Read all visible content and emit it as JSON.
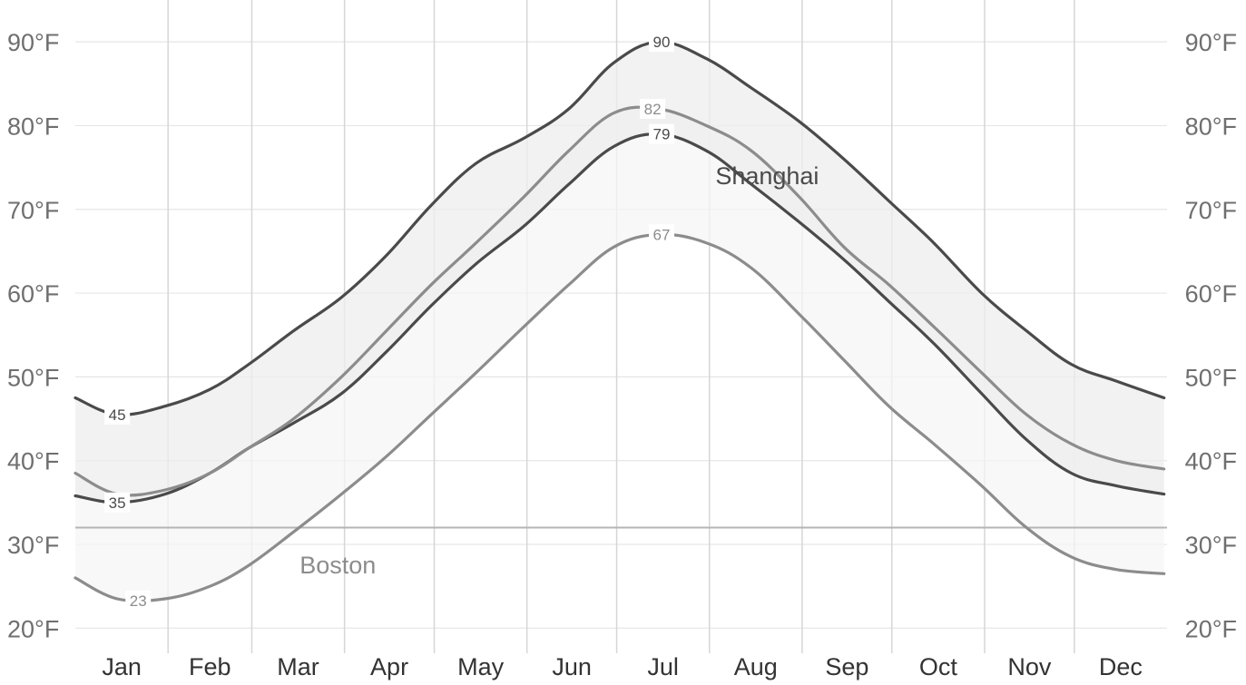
{
  "chart_data": {
    "type": "line",
    "title": "",
    "xlabel": "",
    "ylabel": "",
    "y_unit_suffix": "°F",
    "ylim": [
      17,
      95
    ],
    "y_ticks": [
      20,
      30,
      40,
      50,
      60,
      70,
      80,
      90
    ],
    "freezing_line": 32,
    "months": [
      "Jan",
      "Feb",
      "Mar",
      "Apr",
      "May",
      "Jun",
      "Jul",
      "Aug",
      "Sep",
      "Oct",
      "Nov",
      "Dec"
    ],
    "x": [
      1,
      15,
      31,
      46,
      59,
      74,
      90,
      105,
      120,
      135,
      151,
      166,
      181,
      196,
      212,
      227,
      243,
      258,
      273,
      288,
      304,
      319,
      334,
      349,
      365
    ],
    "grid": true,
    "bands": [
      {
        "name": "Shanghai",
        "upper_series": "shanghai_high",
        "lower_series": "shanghai_low",
        "fill": "#eeeeee",
        "label_x": 215,
        "label_y": 74
      },
      {
        "name": "Boston",
        "upper_series": "boston_high",
        "lower_series": "boston_low",
        "fill": "#f6f6f6",
        "label_x": 76,
        "label_y": 27.5
      }
    ],
    "series": [
      {
        "id": "shanghai_high",
        "color": "#4a4a4a",
        "values": [
          47.5,
          45.5,
          46.5,
          48.5,
          51.5,
          55.5,
          59.5,
          64.5,
          70.5,
          75.5,
          78.5,
          82.0,
          87.5,
          90.0,
          88.0,
          84.5,
          80.5,
          76.0,
          71.0,
          66.0,
          60.0,
          55.5,
          51.5,
          49.5,
          47.5
        ],
        "label_x": 21,
        "label_value": 45
      },
      {
        "id": "shanghai_low",
        "color": "#4a4a4a",
        "values": [
          35.8,
          35.0,
          36.0,
          38.5,
          41.5,
          44.5,
          48.0,
          53.0,
          58.5,
          63.5,
          68.0,
          73.0,
          77.5,
          79.0,
          77.0,
          73.0,
          68.5,
          64.0,
          59.0,
          54.0,
          48.0,
          42.5,
          38.5,
          37.0,
          36.0
        ],
        "label_x": 19,
        "label_value": 35
      },
      {
        "id": "boston_high",
        "color": "#8c8c8c",
        "values": [
          38.5,
          36.0,
          36.5,
          38.5,
          41.5,
          45.0,
          50.0,
          55.5,
          61.0,
          66.0,
          71.5,
          77.0,
          81.5,
          82.0,
          80.0,
          77.0,
          71.5,
          65.5,
          61.0,
          56.0,
          50.5,
          45.5,
          42.0,
          40.0,
          39.0
        ],
        "label_x": 15,
        "label_value": 36.5
      },
      {
        "id": "boston_low",
        "color": "#8c8c8c",
        "values": [
          26.0,
          23.5,
          23.5,
          25.0,
          27.5,
          31.5,
          36.0,
          40.5,
          45.5,
          50.5,
          56.0,
          61.0,
          65.5,
          67.0,
          66.0,
          63.0,
          57.5,
          52.0,
          46.5,
          42.0,
          37.0,
          32.0,
          28.5,
          27.0,
          26.5
        ],
        "label_x": 22,
        "label_value": 23
      }
    ],
    "point_labels": [
      {
        "series": "shanghai_high",
        "x": 15,
        "y": 45.5,
        "text": "45"
      },
      {
        "series": "shanghai_low",
        "x": 15,
        "y": 35.0,
        "text": "35"
      },
      {
        "series": "boston_low",
        "x": 22,
        "y": 23.3,
        "text": "23"
      },
      {
        "series": "shanghai_high",
        "x": 197,
        "y": 90.0,
        "text": "90"
      },
      {
        "series": "boston_high",
        "x": 194,
        "y": 82.0,
        "text": "82"
      },
      {
        "series": "shanghai_low",
        "x": 197,
        "y": 79.0,
        "text": "79"
      },
      {
        "series": "boston_low",
        "x": 197,
        "y": 67.0,
        "text": "67"
      }
    ]
  }
}
